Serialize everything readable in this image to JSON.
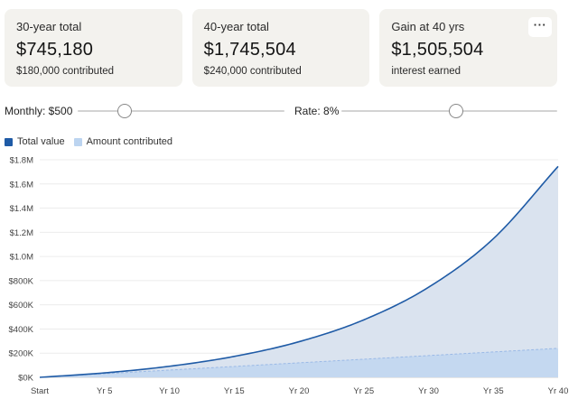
{
  "cards": [
    {
      "label": "30-year total",
      "value": "$745,180",
      "sub": "$180,000 contributed"
    },
    {
      "label": "40-year total",
      "value": "$1,745,504",
      "sub": "$240,000 contributed"
    },
    {
      "label": "Gain at 40 yrs",
      "value": "$1,505,504",
      "sub": "interest earned"
    }
  ],
  "more_button": {
    "label": "···",
    "icon": "more-horizontal-icon"
  },
  "controls": {
    "monthly": {
      "label": "Monthly: $500",
      "value": 500
    },
    "rate": {
      "label": "Rate: 8%",
      "value": 8
    }
  },
  "colors": {
    "total": "#1f5ba6",
    "total_fill": "#dae3ef",
    "contributed": "#bcd4f0",
    "contributed_line": "#9ab9e6"
  },
  "chart_data": {
    "type": "area",
    "x": [
      0,
      5,
      10,
      15,
      20,
      25,
      30,
      35,
      40
    ],
    "xticks": [
      "Start",
      "Yr 5",
      "Yr 10",
      "Yr 15",
      "Yr 20",
      "Yr 25",
      "Yr 30",
      "Yr 35",
      "Yr 40"
    ],
    "yticks": [
      "$0K",
      "$200K",
      "$400K",
      "$600K",
      "$800K",
      "$1.0M",
      "$1.2M",
      "$1.4M",
      "$1.6M",
      "$1.8M"
    ],
    "ylim": [
      0,
      1800000
    ],
    "xlim": [
      0,
      40
    ],
    "grid": true,
    "legend_position": "top-left",
    "series": [
      {
        "name": "Total value",
        "values": [
          0,
          36738,
          91473,
          173019,
          294510,
          475513,
          745180,
          1146935,
          1745504
        ]
      },
      {
        "name": "Amount contributed",
        "values": [
          0,
          30000,
          60000,
          90000,
          120000,
          150000,
          180000,
          210000,
          240000
        ]
      }
    ]
  }
}
